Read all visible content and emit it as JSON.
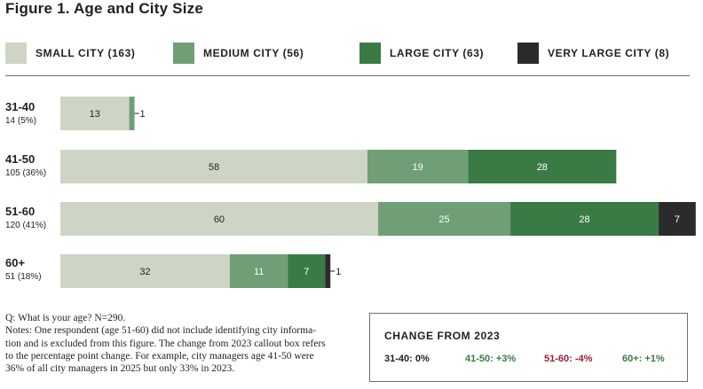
{
  "chart_data": {
    "type": "bar",
    "orientation": "horizontal",
    "stacked": true,
    "title": "Figure 1. Age and City Size",
    "categories": [
      "31-40",
      "41-50",
      "51-60",
      "60+"
    ],
    "category_subtitles": [
      "14 (5%)",
      "105 (36%)",
      "120 (41%)",
      "51 (18%)"
    ],
    "legend_position": "top",
    "series": [
      {
        "name": "SMALL CITY (163)",
        "color": "#cfd5c4",
        "values": [
          13,
          58,
          60,
          32
        ],
        "labels": [
          "13",
          "58",
          "60",
          "32"
        ]
      },
      {
        "name": "MEDIUM CITY (56)",
        "color": "#6f9e77",
        "values": [
          1,
          19,
          25,
          11
        ],
        "labels": [
          "1",
          "19",
          "25",
          "11"
        ]
      },
      {
        "name": "LARGE CITY (63)",
        "color": "#3a7a45",
        "values": [
          0,
          28,
          28,
          7
        ],
        "labels": [
          "",
          "28",
          "28",
          "7"
        ]
      },
      {
        "name": "VERY LARGE CITY (8)",
        "color": "#2b2b2b",
        "values": [
          0,
          0,
          7,
          1
        ],
        "labels": [
          "",
          "",
          "7",
          "1"
        ]
      }
    ],
    "xlim": [
      0,
      120
    ],
    "grid": false
  },
  "notes": {
    "lines": [
      "Q: What is your age? N=290.",
      "Notes: One respondent (age 51-60) did not include identifying city informa-",
      "tion and is excluded from this figure. The change from 2023 callout box refers",
      "to the percentage point change. For example, city managers age 41-50 were",
      "36% of all city managers in 2025 but only 33% in 2023."
    ]
  },
  "callout": {
    "title": "CHANGE FROM 2023",
    "items": [
      {
        "text": "31-40: 0%",
        "color": "#231f20"
      },
      {
        "text": "41-50: +3%",
        "color": "#3a7a45"
      },
      {
        "text": "51-60: -4%",
        "color": "#9b1c31"
      },
      {
        "text": "60+: +1%",
        "color": "#3a7a45"
      }
    ]
  }
}
